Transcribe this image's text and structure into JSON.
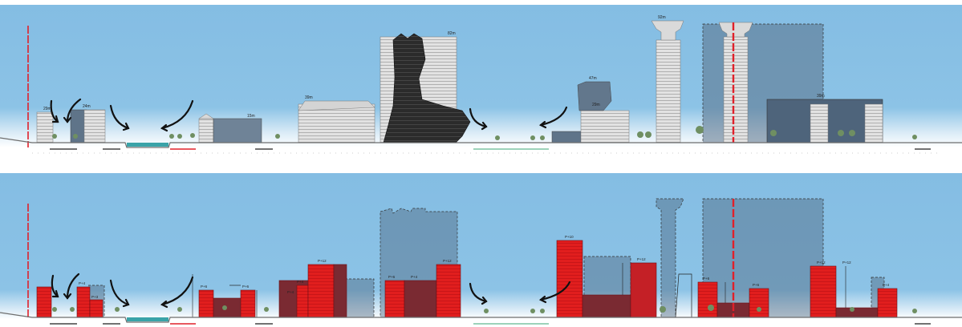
{
  "colors": {
    "sky": "#84bde3",
    "ground": "#6e6e6e",
    "existing_building": "#dcdcdc",
    "dark_tower": "#2b2b2b",
    "slate_building": "#5b6f86",
    "ghost_building": "#506880",
    "proposed_building": "#e11e1e",
    "proposed_shadow": "#7a2a32",
    "axis_line": "#e0202a",
    "water": "#3aa3a8",
    "tree": "#6f8f62",
    "arrow": "#111111"
  },
  "icons": [
    "curved-arrow-icon",
    "tree-icon",
    "axis-line-icon"
  ],
  "top": {
    "height_labels": [
      "29m",
      "24m",
      "15m",
      "39m",
      "82m",
      "47m",
      "29m",
      "92m",
      "39m"
    ]
  },
  "bottom": {
    "floor_labels": [
      "P+4",
      "P+3",
      "P+6",
      "P+6",
      "P+4",
      "P+4",
      "P+6",
      "P+12",
      "P+10",
      "P+12",
      "P+6",
      "P+12",
      "P+12",
      "P+4",
      "P+6",
      "P+4",
      "P+12"
    ]
  }
}
